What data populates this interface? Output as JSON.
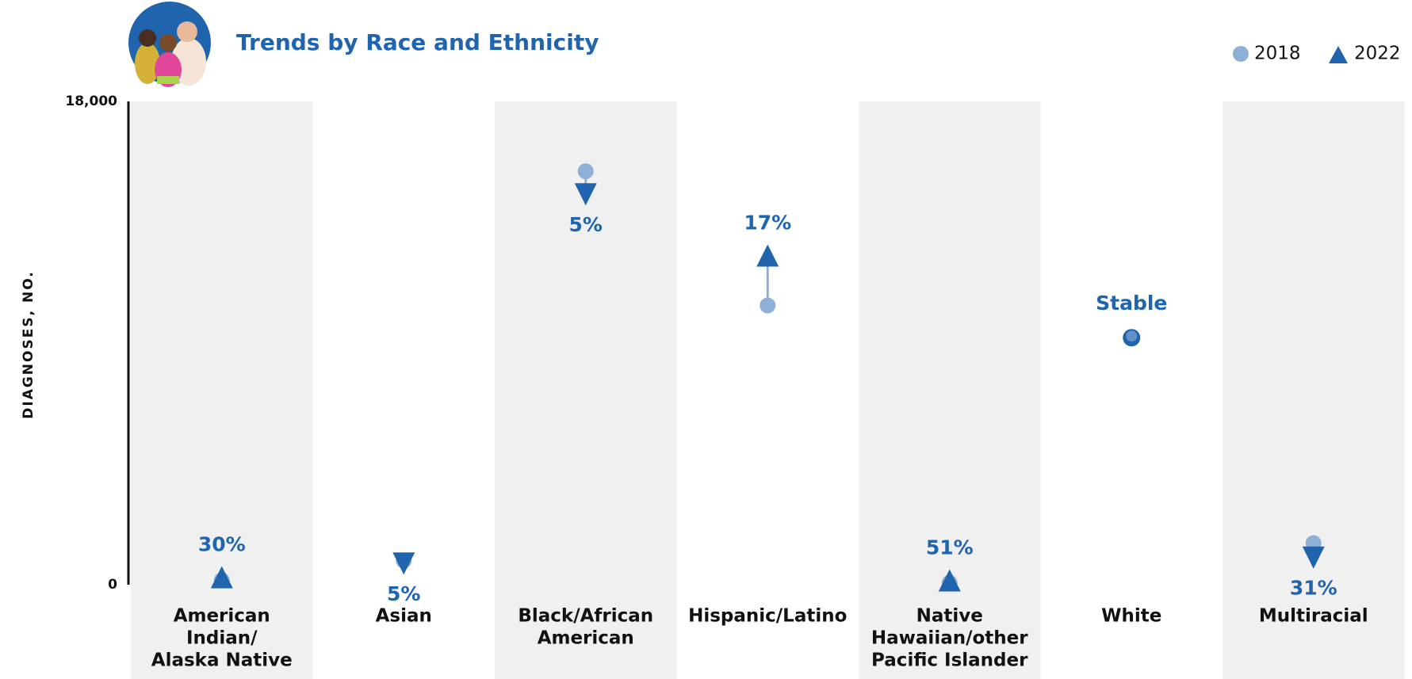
{
  "chart_data": {
    "type": "dot-change",
    "title": "Trends by Race and Ethnicity",
    "y_label": "DIAGNOSES, NO.",
    "categories": [
      [
        "American",
        "Indian/",
        "Alaska Native"
      ],
      [
        "Asian"
      ],
      [
        "Black/African",
        "American"
      ],
      [
        "Hispanic/Latino"
      ],
      [
        "Native",
        "Hawaiian/other",
        "Pacific Islander"
      ],
      [
        "White"
      ],
      [
        "Multiracial"
      ]
    ],
    "series": [
      {
        "name": "2018",
        "color": "#8fb0d6",
        "values": [
          170,
          900,
          15400,
          10400,
          70,
          9200,
          1550
        ]
      },
      {
        "name": "2022",
        "color": "#1f64ad",
        "values": [
          220,
          850,
          14600,
          12200,
          105,
          9200,
          1070
        ]
      }
    ],
    "change_labels": [
      "30%",
      "5%",
      "5%",
      "17%",
      "51%",
      "Stable",
      "31%"
    ],
    "ylim": [
      0,
      18000
    ],
    "yticks": [
      0,
      {
        "value": 18000,
        "label": "18,000"
      }
    ],
    "band_color": "#f0f0f0"
  }
}
